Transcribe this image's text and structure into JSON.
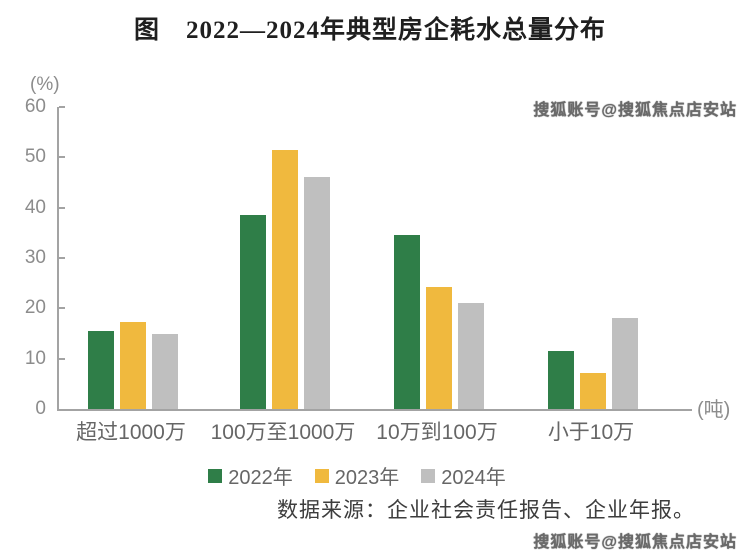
{
  "title": "图　2022—2024年典型房企耗水总量分布",
  "watermark": {
    "top": "搜狐账号@搜狐焦点店安站",
    "bottom": "搜狐账号@搜狐焦点店安站"
  },
  "chart_data": {
    "type": "bar",
    "title": "图 2022—2024年典型房企耗水总量分布",
    "categories": [
      "超过1000万",
      "100万至1000万",
      "10万到100万",
      "小于10万"
    ],
    "series": [
      {
        "name": "2022年",
        "color": "#2f7e48",
        "values": [
          15.5,
          38.5,
          34.5,
          11.5
        ]
      },
      {
        "name": "2023年",
        "color": "#f0b93e",
        "values": [
          17.2,
          51.5,
          24.2,
          7.1
        ]
      },
      {
        "name": "2024年",
        "color": "#bfbfbf",
        "values": [
          15.0,
          46.0,
          21.0,
          18.0
        ]
      }
    ],
    "ylabel": "(%)",
    "xlabel_unit": "(吨)",
    "ylim": [
      0,
      60
    ],
    "yticks": [
      0,
      10,
      20,
      30,
      40,
      50,
      60
    ],
    "grid": false,
    "legend_position": "bottom"
  },
  "source": "数据来源：企业社会责任报告、企业年报。",
  "colors": {
    "axis": "#a3a3a3",
    "tick_label": "#8c8c8c",
    "category_label": "#666666",
    "title": "#1f1f1f",
    "watermark": "#6a6a6a",
    "source_text": "#3d3d3d"
  }
}
